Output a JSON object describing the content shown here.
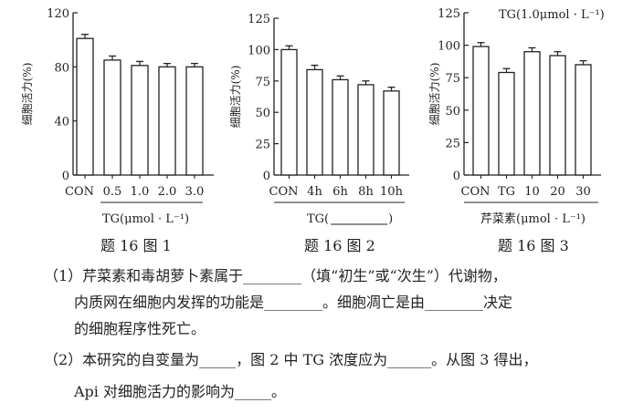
{
  "chart_data": [
    {
      "type": "bar",
      "caption": "题 16 图 1",
      "ylabel": "细胞活力(%)",
      "ylim": [
        0,
        120
      ],
      "yticks": [
        0,
        40,
        80,
        120
      ],
      "categories": [
        "CON",
        "0.5",
        "1.0",
        "2.0",
        "3.0"
      ],
      "values": [
        101,
        85,
        81,
        80,
        80
      ],
      "errors": [
        3,
        3,
        3,
        2.5,
        2.5
      ],
      "xlabel": "TG(μmol · L⁻¹)",
      "annotation": ""
    },
    {
      "type": "bar",
      "caption": "题 16 图 2",
      "ylabel": "细胞活力(%)",
      "ylim": [
        0,
        125
      ],
      "yticks": [
        0,
        25,
        50,
        75,
        100,
        125
      ],
      "categories": [
        "CON",
        "4h",
        "6h",
        "8h",
        "10h"
      ],
      "values": [
        100,
        84,
        76,
        72,
        67
      ],
      "errors": [
        3,
        3.5,
        3,
        3,
        3
      ],
      "xlabel": "TG(",
      "xlabel_suffix": ")",
      "annotation": ""
    },
    {
      "type": "bar",
      "caption": "题 16 图 3",
      "ylabel": "细胞活力(%)",
      "ylim": [
        0,
        125
      ],
      "yticks": [
        0,
        25,
        50,
        75,
        100,
        125
      ],
      "categories": [
        "CON",
        "TG",
        "10",
        "20",
        "30"
      ],
      "values": [
        99,
        79,
        95,
        92,
        85
      ],
      "errors": [
        3,
        3,
        3,
        3,
        3
      ],
      "xlabel": "芹菜素(μmol · L⁻¹)",
      "annotation": "TG(1.0μmol · L⁻¹)"
    }
  ],
  "question": {
    "q1_line1": "（1）芹菜素和毒胡萝卜素属于________（填“初生”或“次生”）代谢物，",
    "q1_line2": "内质网在细胞内发挥的功能是________。细胞凋亡是由________决定",
    "q1_line3": "的细胞程序性死亡。",
    "q2_line1": "（2）本研究的自变量为_____，图 2 中 TG 浓度应为______。从图 3 得出，",
    "q2_line2": "Api 对细胞活力的影响为_____。"
  }
}
